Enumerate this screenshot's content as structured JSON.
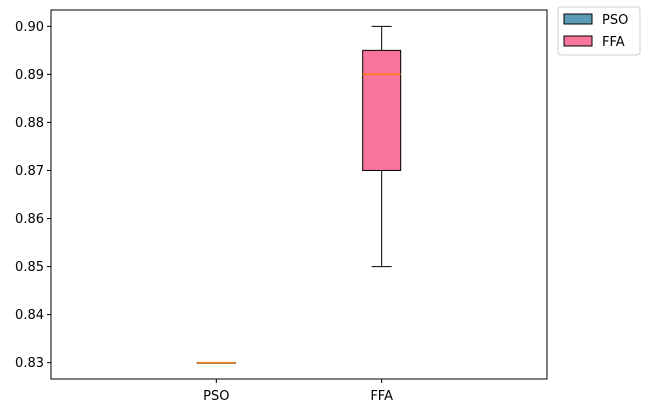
{
  "chart_data": {
    "type": "box",
    "categories": [
      "PSO",
      "FFA"
    ],
    "series": [
      {
        "name": "PSO",
        "color": "#5b9bb5",
        "whisker_low": 0.83,
        "q1": 0.83,
        "median": 0.83,
        "q3": 0.83,
        "whisker_high": 0.83
      },
      {
        "name": "FFA",
        "color": "#f7759a",
        "whisker_low": 0.85,
        "q1": 0.87,
        "median": 0.89,
        "q3": 0.895,
        "whisker_high": 0.9
      }
    ],
    "median_color": "#ff7f0e",
    "title": "",
    "xlabel": "",
    "ylabel": "",
    "ylim": [
      0.8266,
      0.9034
    ],
    "yticks": [
      0.83,
      0.84,
      0.85,
      0.86,
      0.87,
      0.88,
      0.89,
      0.9
    ],
    "ytick_labels": [
      "0.83",
      "0.84",
      "0.85",
      "0.86",
      "0.87",
      "0.88",
      "0.89",
      "0.90"
    ],
    "grid": false,
    "legend": {
      "placement": "outside-top-right",
      "entries": [
        "PSO",
        "FFA"
      ]
    }
  }
}
